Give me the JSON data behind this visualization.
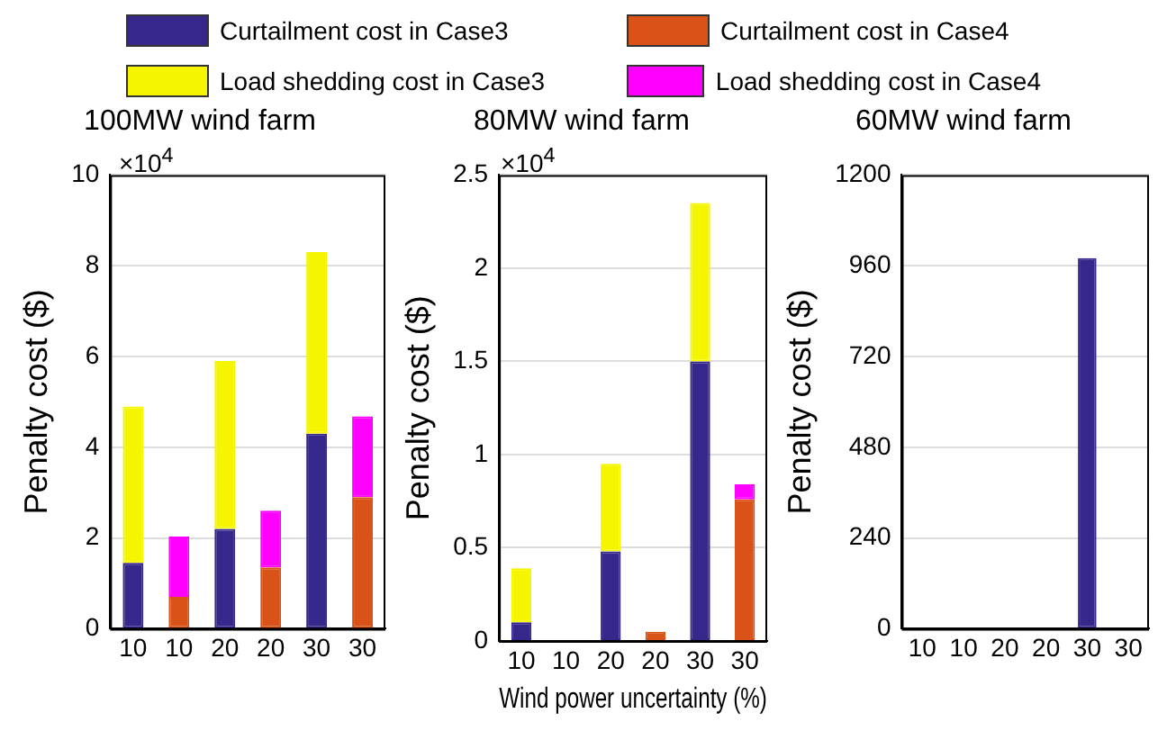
{
  "chart_data": [
    {
      "type": "bar",
      "title": "100MW wind farm",
      "ylabel": "Penalty cost ($)",
      "stacked": true,
      "grid": "y",
      "legend": "top",
      "categories": [
        "10",
        "10",
        "20",
        "20",
        "30",
        "30"
      ],
      "ylim": [
        0,
        10
      ],
      "yticks": [
        0,
        2,
        4,
        6,
        8,
        10
      ],
      "annotations": [
        "×10$^{4}$"
      ],
      "series": [
        {
          "name": "Curtailment cost in Case3",
          "color": "#36288a",
          "values": [
            1.45,
            null,
            2.2,
            null,
            4.3,
            null
          ]
        },
        {
          "name": "Load shedding cost in Case3",
          "color": "#f5f500",
          "values": [
            3.45,
            null,
            3.7,
            null,
            4.0,
            null
          ]
        },
        {
          "name": "Curtailment cost in Case4",
          "color": "#d95319",
          "values": [
            null,
            0.7,
            null,
            1.35,
            null,
            2.9
          ]
        },
        {
          "name": "Load shedding cost in Case4",
          "color": "#ff00ff",
          "values": [
            null,
            1.33,
            null,
            1.25,
            null,
            1.78
          ]
        }
      ]
    },
    {
      "type": "bar",
      "title": "80MW wind farm",
      "ylabel": "Penalty cost ($)",
      "xlabel": "Wind power uncertainty (%)",
      "stacked": true,
      "grid": "y",
      "categories": [
        "10",
        "10",
        "20",
        "20",
        "30",
        "30"
      ],
      "ylim": [
        0,
        2.5
      ],
      "yticks": [
        0,
        0.5,
        1,
        1.5,
        2,
        2.5
      ],
      "annotations": [
        "×10$^{4}$"
      ],
      "series": [
        {
          "color": "#36288a",
          "values": [
            0.1,
            null,
            0.48,
            null,
            1.5,
            null
          ]
        },
        {
          "color": "#f5f500",
          "values": [
            0.29,
            null,
            0.47,
            null,
            0.85,
            null
          ]
        },
        {
          "color": "#d95319",
          "values": [
            null,
            0,
            null,
            0.05,
            null,
            0.76
          ]
        },
        {
          "color": "#ff00ff",
          "values": [
            null,
            0,
            null,
            0,
            null,
            0.08
          ]
        }
      ]
    },
    {
      "type": "bar",
      "title": "60MW wind farm",
      "ylabel": "Penalty cost ($)",
      "stacked": true,
      "grid": "y",
      "categories": [
        "10",
        "10",
        "20",
        "20",
        "30",
        "30"
      ],
      "ylim": [
        0,
        1200
      ],
      "yticks": [
        0,
        240,
        480,
        720,
        960,
        1200
      ],
      "series": [
        {
          "color": "#36288a",
          "values": [
            0,
            null,
            0,
            null,
            980,
            null
          ]
        },
        {
          "color": "#f5f500",
          "values": [
            0,
            null,
            0,
            null,
            0,
            null
          ]
        },
        {
          "color": "#d95319",
          "values": [
            null,
            0,
            null,
            0,
            null,
            0
          ]
        },
        {
          "color": "#ff00ff",
          "values": [
            null,
            0,
            null,
            0,
            null,
            0
          ]
        }
      ]
    }
  ]
}
